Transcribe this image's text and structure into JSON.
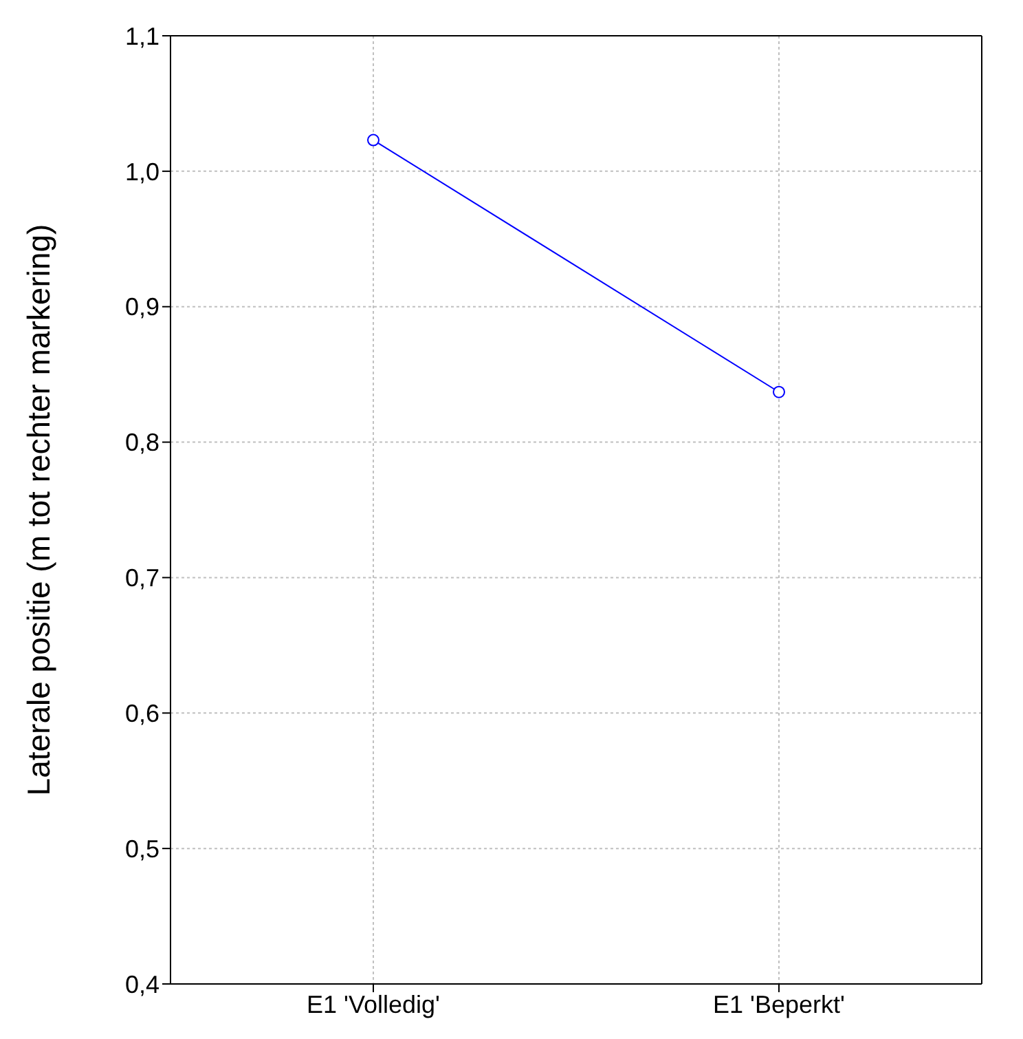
{
  "chart_data": {
    "type": "line",
    "ylabel": "Laterale positie (m tot rechter markering)",
    "categories": [
      "E1 'Volledig'",
      "E1 'Beperkt'"
    ],
    "series": [
      {
        "color": "#0000ff",
        "values": [
          1.023,
          0.837
        ]
      }
    ],
    "ylim": [
      0.4,
      1.1
    ],
    "yticks": [
      {
        "value": 0.4,
        "label": "0,4"
      },
      {
        "value": 0.5,
        "label": "0,5"
      },
      {
        "value": 0.6,
        "label": "0,6"
      },
      {
        "value": 0.7,
        "label": "0,7"
      },
      {
        "value": 0.8,
        "label": "0,8"
      },
      {
        "value": 0.9,
        "label": "0,9"
      },
      {
        "value": 1.0,
        "label": "1,0"
      },
      {
        "value": 1.1,
        "label": "1,1"
      }
    ],
    "grid": true,
    "marker": "circle",
    "line_style": "solid",
    "legend": false
  }
}
